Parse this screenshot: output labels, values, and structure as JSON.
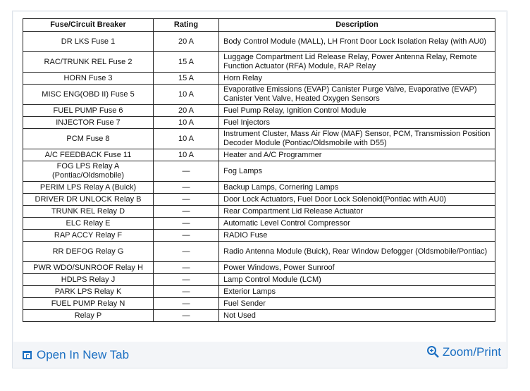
{
  "table": {
    "headers": [
      "Fuse/Circuit Breaker",
      "Rating",
      "Description"
    ],
    "rows": [
      {
        "name": "DR LKS Fuse 1",
        "rating": "20 A",
        "desc": "Body Control Module (MALL), LH Front Door Lock Isolation Relay (with AU0)"
      },
      {
        "name": "RAC/TRUNK REL Fuse 2",
        "rating": "15 A",
        "desc": "Luggage Compartment Lid Release Relay, Power Antenna Relay, Remote Function Actuator (RFA) Module, RAP Relay"
      },
      {
        "name": "HORN Fuse 3",
        "rating": "15 A",
        "desc": "Horn Relay"
      },
      {
        "name": "MISC ENG(OBD II) Fuse 5",
        "rating": "10 A",
        "desc": "Evaporative Emissions (EVAP) Canister Purge Valve, Evaporative (EVAP) Canister Vent Valve, Heated Oxygen Sensors"
      },
      {
        "name": "FUEL PUMP Fuse 6",
        "rating": "20 A",
        "desc": "Fuel Pump Relay, Ignition Control Module"
      },
      {
        "name": "INJECTOR Fuse 7",
        "rating": "10 A",
        "desc": "Fuel Injectors"
      },
      {
        "name": "PCM Fuse 8",
        "rating": "10 A",
        "desc": "Instrument Cluster, Mass Air Flow (MAF) Sensor, PCM, Transmission Position Decoder Module (Pontiac/Oldsmobile with D55)"
      },
      {
        "name": "A/C FEEDBACK Fuse 11",
        "rating": "10 A",
        "desc": "Heater and A/C Programmer"
      },
      {
        "name": "FOG LPS Relay A (Pontiac/Oldsmobile)",
        "rating": "—",
        "desc": "Fog Lamps"
      },
      {
        "name": "PERIM LPS Relay A (Buick)",
        "rating": "—",
        "desc": "Backup Lamps, Cornering Lamps"
      },
      {
        "name": "DRIVER DR UNLOCK Relay B",
        "rating": "—",
        "desc": "Door Lock Actuators, Fuel Door Lock Solenoid(Pontiac with AU0)"
      },
      {
        "name": "TRUNK REL Relay D",
        "rating": "—",
        "desc": "Rear Compartment Lid Release Actuator"
      },
      {
        "name": "ELC Relay E",
        "rating": "—",
        "desc": "Automatic Level Control Compressor"
      },
      {
        "name": "RAP ACCY Relay F",
        "rating": "—",
        "desc": "RADIO Fuse"
      },
      {
        "name": "RR DEFOG Relay G",
        "rating": "—",
        "desc": "Radio Antenna Module (Buick), Rear Window Defogger (Oldsmobile/Pontiac)"
      },
      {
        "name": "PWR WDO/SUNROOF Relay H",
        "rating": "—",
        "desc": "Power Windows, Power Sunroof"
      },
      {
        "name": "HDLPS Relay J",
        "rating": "—",
        "desc": "Lamp Control Module (LCM)"
      },
      {
        "name": "PARK LPS Relay K",
        "rating": "—",
        "desc": "Exterior Lamps"
      },
      {
        "name": "FUEL PUMP Relay N",
        "rating": "—",
        "desc": "Fuel Sender"
      },
      {
        "name": "Relay P",
        "rating": "—",
        "desc": "Not Used"
      }
    ]
  },
  "footer": {
    "open_label": "Open In New Tab",
    "open_icon": "open-in-new-tab-icon",
    "zoom_label": "Zoom/Print",
    "zoom_icon": "zoom-in-icon",
    "link_color": "#1b6fc2"
  }
}
